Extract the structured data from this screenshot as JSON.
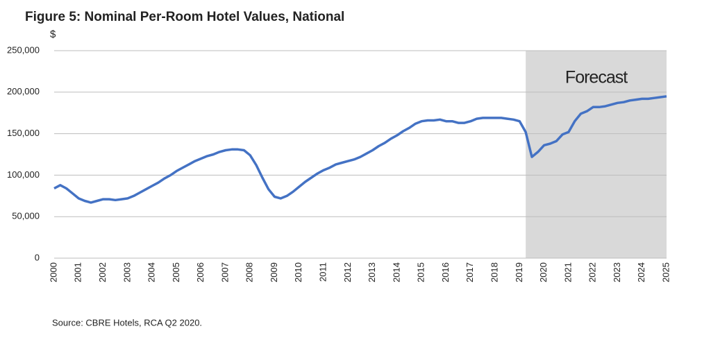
{
  "chart_data": {
    "type": "line",
    "title": "Figure 5: Nominal Per-Room Hotel Values, National",
    "y_label": "$",
    "source": "Source: CBRE Hotels, RCA Q2 2020.",
    "shaded_region": {
      "label": "Forecast",
      "x": [
        2019.25,
        2025
      ],
      "color": "#d9d9d9"
    },
    "xlim": [
      2000,
      2025
    ],
    "xticks": [
      2000,
      2001,
      2002,
      2003,
      2004,
      2005,
      2006,
      2007,
      2008,
      2009,
      2010,
      2011,
      2012,
      2013,
      2014,
      2015,
      2016,
      2017,
      2018,
      2019,
      2020,
      2021,
      2022,
      2023,
      2024,
      2025
    ],
    "ylim": [
      0,
      250000
    ],
    "yticks": [
      0,
      {
        "value": 50000,
        "label": "50,000"
      },
      {
        "value": 100000,
        "label": "100,000"
      },
      {
        "value": 150000,
        "label": "150,000"
      },
      {
        "value": 200000,
        "label": "200,000"
      },
      {
        "value": 250000,
        "label": "250,000"
      }
    ],
    "grid": true,
    "x": [
      2000,
      2000.25,
      2000.5,
      2000.75,
      2001,
      2001.25,
      2001.5,
      2001.75,
      2002,
      2002.25,
      2002.5,
      2002.75,
      2003,
      2003.25,
      2003.5,
      2003.75,
      2004,
      2004.25,
      2004.5,
      2004.75,
      2005,
      2005.25,
      2005.5,
      2005.75,
      2006,
      2006.25,
      2006.5,
      2006.75,
      2007,
      2007.25,
      2007.5,
      2007.75,
      2008,
      2008.25,
      2008.5,
      2008.75,
      2009,
      2009.25,
      2009.5,
      2009.75,
      2010,
      2010.25,
      2010.5,
      2010.75,
      2011,
      2011.25,
      2011.5,
      2011.75,
      2012,
      2012.25,
      2012.5,
      2012.75,
      2013,
      2013.25,
      2013.5,
      2013.75,
      2014,
      2014.25,
      2014.5,
      2014.75,
      2015,
      2015.25,
      2015.5,
      2015.75,
      2016,
      2016.25,
      2016.5,
      2016.75,
      2017,
      2017.25,
      2017.5,
      2017.75,
      2018,
      2018.25,
      2018.5,
      2018.75,
      2019,
      2019.25,
      2019.5,
      2019.75,
      2020,
      2020.25,
      2020.5,
      2020.75,
      2021,
      2021.25,
      2021.5,
      2021.75,
      2022,
      2022.25,
      2022.5,
      2022.75,
      2023,
      2023.25,
      2023.5,
      2023.75,
      2024,
      2024.25,
      2024.5,
      2024.75,
      2025
    ],
    "series": [
      {
        "color": "#4472c4",
        "values": [
          84000,
          88000,
          84000,
          78000,
          72000,
          69000,
          67000,
          69000,
          71000,
          71000,
          70000,
          71000,
          72000,
          75000,
          79000,
          83000,
          87000,
          91000,
          96000,
          100000,
          105000,
          109000,
          113000,
          117000,
          120000,
          123000,
          125000,
          128000,
          130000,
          131000,
          131000,
          130000,
          124000,
          112000,
          97000,
          83000,
          74000,
          72000,
          75000,
          80000,
          86000,
          92000,
          97000,
          102000,
          106000,
          109000,
          113000,
          115000,
          117000,
          119000,
          122000,
          126000,
          130000,
          135000,
          139000,
          144000,
          148000,
          153000,
          157000,
          162000,
          165000,
          166000,
          166000,
          167000,
          165000,
          165000,
          163000,
          163000,
          165000,
          168000,
          169000,
          169000,
          169000,
          169000,
          168000,
          167000,
          165000,
          152000,
          122000,
          128000,
          136000,
          138000,
          141000,
          149000,
          152000,
          165000,
          174000,
          177000,
          182000,
          182000,
          183000,
          185000,
          187000,
          188000,
          190000,
          191000,
          192000,
          192000,
          193000,
          194000,
          195000
        ]
      }
    ]
  }
}
